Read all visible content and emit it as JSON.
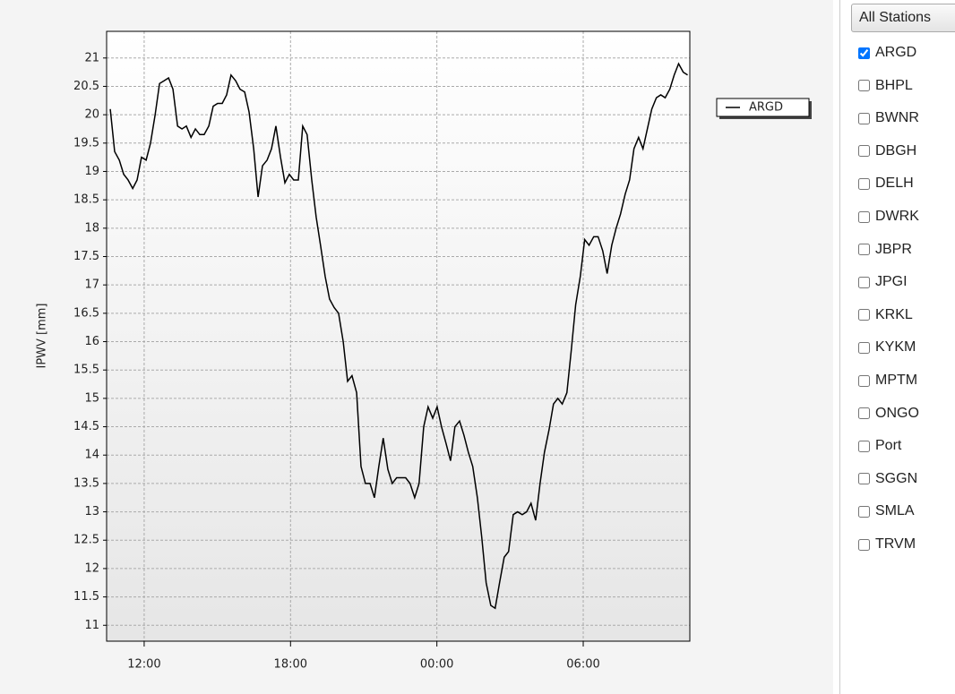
{
  "chart_data": {
    "type": "line",
    "y_label": "IPWV [mm]",
    "x": [
      10.61,
      10.79,
      10.98,
      11.16,
      11.34,
      11.53,
      11.71,
      11.89,
      12.08,
      12.26,
      12.45,
      12.63,
      12.82,
      13.0,
      13.18,
      13.37,
      13.55,
      13.73,
      13.92,
      14.1,
      14.28,
      14.46,
      14.65,
      14.83,
      15.01,
      15.2,
      15.38,
      15.56,
      15.75,
      15.93,
      16.12,
      16.3,
      16.49,
      16.67,
      16.85,
      17.04,
      17.22,
      17.4,
      17.59,
      17.77,
      17.95,
      18.13,
      18.32,
      18.5,
      18.68,
      18.87,
      19.05,
      19.23,
      19.42,
      19.6,
      19.79,
      19.97,
      20.16,
      20.34,
      20.52,
      20.71,
      20.89,
      21.07,
      21.26,
      21.44,
      21.62,
      21.8,
      21.99,
      22.17,
      22.35,
      22.54,
      22.72,
      22.9,
      23.09,
      23.27,
      23.46,
      23.64,
      23.83,
      24.01,
      24.19,
      24.38,
      24.56,
      24.74,
      24.93,
      25.11,
      25.29,
      25.47,
      25.66,
      25.84,
      26.02,
      26.21,
      26.39,
      26.57,
      26.76,
      26.94,
      27.13,
      27.31,
      27.5,
      27.68,
      27.86,
      28.05,
      28.23,
      28.41,
      28.6,
      28.78,
      28.96,
      29.14,
      29.33,
      29.51,
      29.69,
      29.88,
      30.06,
      30.24,
      30.43,
      30.61,
      30.8,
      30.98,
      31.17,
      31.35,
      31.53,
      31.72,
      31.9,
      32.08,
      32.27,
      32.45,
      32.63,
      32.81,
      33.0,
      33.18,
      33.36,
      33.55,
      33.73,
      33.91,
      34.1,
      34.28
    ],
    "series": [
      {
        "name": "ARGD",
        "color": "#000000",
        "values": [
          20.1,
          19.35,
          19.2,
          18.95,
          18.85,
          18.7,
          18.85,
          19.25,
          19.2,
          19.5,
          20.0,
          20.55,
          20.6,
          20.65,
          20.45,
          19.8,
          19.75,
          19.8,
          19.6,
          19.75,
          19.65,
          19.65,
          19.8,
          20.15,
          20.2,
          20.2,
          20.35,
          20.7,
          20.6,
          20.45,
          20.4,
          20.05,
          19.4,
          18.55,
          19.1,
          19.2,
          19.4,
          19.8,
          19.25,
          18.8,
          18.95,
          18.85,
          18.85,
          19.8,
          19.65,
          18.85,
          18.2,
          17.7,
          17.15,
          16.75,
          16.6,
          16.5,
          16.0,
          15.3,
          15.4,
          15.1,
          13.8,
          13.5,
          13.5,
          13.25,
          13.8,
          14.3,
          13.75,
          13.5,
          13.6,
          13.6,
          13.6,
          13.5,
          13.25,
          13.5,
          14.5,
          14.85,
          14.65,
          14.85,
          14.5,
          14.2,
          13.9,
          14.5,
          14.6,
          14.35,
          14.05,
          13.8,
          13.25,
          12.55,
          11.75,
          11.35,
          11.3,
          11.75,
          12.2,
          12.3,
          12.95,
          13.0,
          12.95,
          13.0,
          13.15,
          12.85,
          13.5,
          14.05,
          14.45,
          14.9,
          15.0,
          14.9,
          15.1,
          15.85,
          16.65,
          17.15,
          17.8,
          17.7,
          17.85,
          17.85,
          17.6,
          17.2,
          17.7,
          18.0,
          18.25,
          18.6,
          18.85,
          19.4,
          19.6,
          19.4,
          19.75,
          20.1,
          20.3,
          20.35,
          20.3,
          20.45,
          20.7,
          20.9,
          20.75,
          20.7
        ]
      }
    ],
    "xlim": [
      10.46,
      34.37
    ],
    "xticks": [
      {
        "value": 12,
        "label": "12:00"
      },
      {
        "value": 18,
        "label": "18:00"
      },
      {
        "value": 24,
        "label": "00:00"
      },
      {
        "value": 30,
        "label": "06:00"
      }
    ],
    "ylim": [
      10.72,
      21.47
    ],
    "yticks": [
      11,
      11.5,
      12,
      12.5,
      13,
      13.5,
      14,
      14.5,
      15,
      15.5,
      16,
      16.5,
      17,
      17.5,
      18,
      18.5,
      19,
      19.5,
      20,
      20.5,
      21
    ],
    "grid": true
  },
  "sidebar": {
    "button": "All Stations",
    "stations": [
      {
        "label": "ARGD",
        "checked": true
      },
      {
        "label": "BHPL",
        "checked": false
      },
      {
        "label": "BWNR",
        "checked": false
      },
      {
        "label": "DBGH",
        "checked": false
      },
      {
        "label": "DELH",
        "checked": false
      },
      {
        "label": "DWRK",
        "checked": false
      },
      {
        "label": "JBPR",
        "checked": false
      },
      {
        "label": "JPGI",
        "checked": false
      },
      {
        "label": "KRKL",
        "checked": false
      },
      {
        "label": "KYKM",
        "checked": false
      },
      {
        "label": "MPTM",
        "checked": false
      },
      {
        "label": "ONGO",
        "checked": false
      },
      {
        "label": "Port",
        "checked": false
      },
      {
        "label": "SGGN",
        "checked": false
      },
      {
        "label": "SMLA",
        "checked": false
      },
      {
        "label": "TRVM",
        "checked": false
      }
    ]
  }
}
